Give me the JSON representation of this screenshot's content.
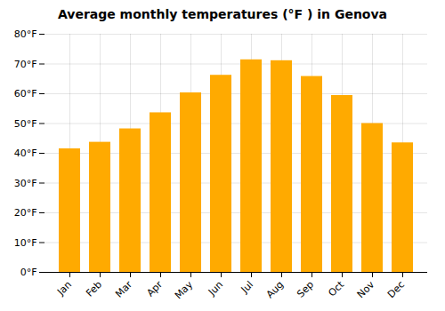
{
  "chart_data": {
    "type": "bar",
    "title": "Average monthly temperatures (°F ) in Genova",
    "categories": [
      "Jan",
      "Feb",
      "Mar",
      "Apr",
      "May",
      "Jun",
      "Jul",
      "Aug",
      "Sep",
      "Oct",
      "Nov",
      "Dec"
    ],
    "values": [
      41.5,
      43.7,
      48.2,
      53.6,
      60.3,
      66.2,
      71.4,
      71.1,
      65.8,
      59.4,
      50.0,
      43.5
    ],
    "color": "#FFAA00",
    "ylim": [
      0,
      80
    ],
    "yticks": [
      {
        "value": 0,
        "label": "0°F"
      },
      {
        "value": 10,
        "label": "10°F"
      },
      {
        "value": 20,
        "label": "20°F"
      },
      {
        "value": 30,
        "label": "30°F"
      },
      {
        "value": 40,
        "label": "40°F"
      },
      {
        "value": 50,
        "label": "50°F"
      },
      {
        "value": 60,
        "label": "60°F"
      },
      {
        "value": 70,
        "label": "70°F"
      },
      {
        "value": 80,
        "label": "80°F"
      }
    ],
    "grid": true
  }
}
